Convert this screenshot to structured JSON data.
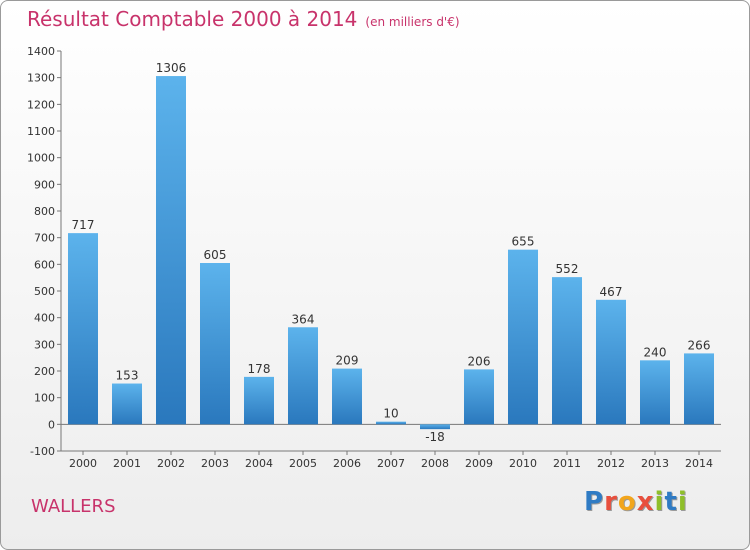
{
  "header": {
    "title": "Résultat Comptable 2000 à 2014",
    "unit": "(en milliers d'€)"
  },
  "footer": {
    "place": "WALLERS",
    "logo_letters": [
      "P",
      "r",
      "o",
      "x",
      "i",
      "t",
      "i"
    ]
  },
  "colors": {
    "title": "#c8336b",
    "bar_top": "#5cb3ec",
    "bar_bottom": "#2a78bd",
    "logo": [
      "#2f7bc4",
      "#e84f3d",
      "#f2a51c",
      "#e84f3d",
      "#8fbf2a",
      "#2f7bc4",
      "#8fbf2a"
    ]
  },
  "chart_data": {
    "type": "bar",
    "title": "Résultat Comptable 2000 à 2014",
    "subtitle": "(en milliers d'€)",
    "categories": [
      "2000",
      "2001",
      "2002",
      "2003",
      "2004",
      "2005",
      "2006",
      "2007",
      "2008",
      "2009",
      "2010",
      "2011",
      "2012",
      "2013",
      "2014"
    ],
    "values": [
      717,
      153,
      1306,
      605,
      178,
      364,
      209,
      10,
      -18,
      206,
      655,
      552,
      467,
      240,
      266
    ],
    "ylim": [
      -100,
      1400
    ],
    "yticks": [
      -100,
      0,
      100,
      200,
      300,
      400,
      500,
      600,
      700,
      800,
      900,
      1000,
      1100,
      1200,
      1300,
      1400
    ],
    "grid": false,
    "legend": "none"
  }
}
